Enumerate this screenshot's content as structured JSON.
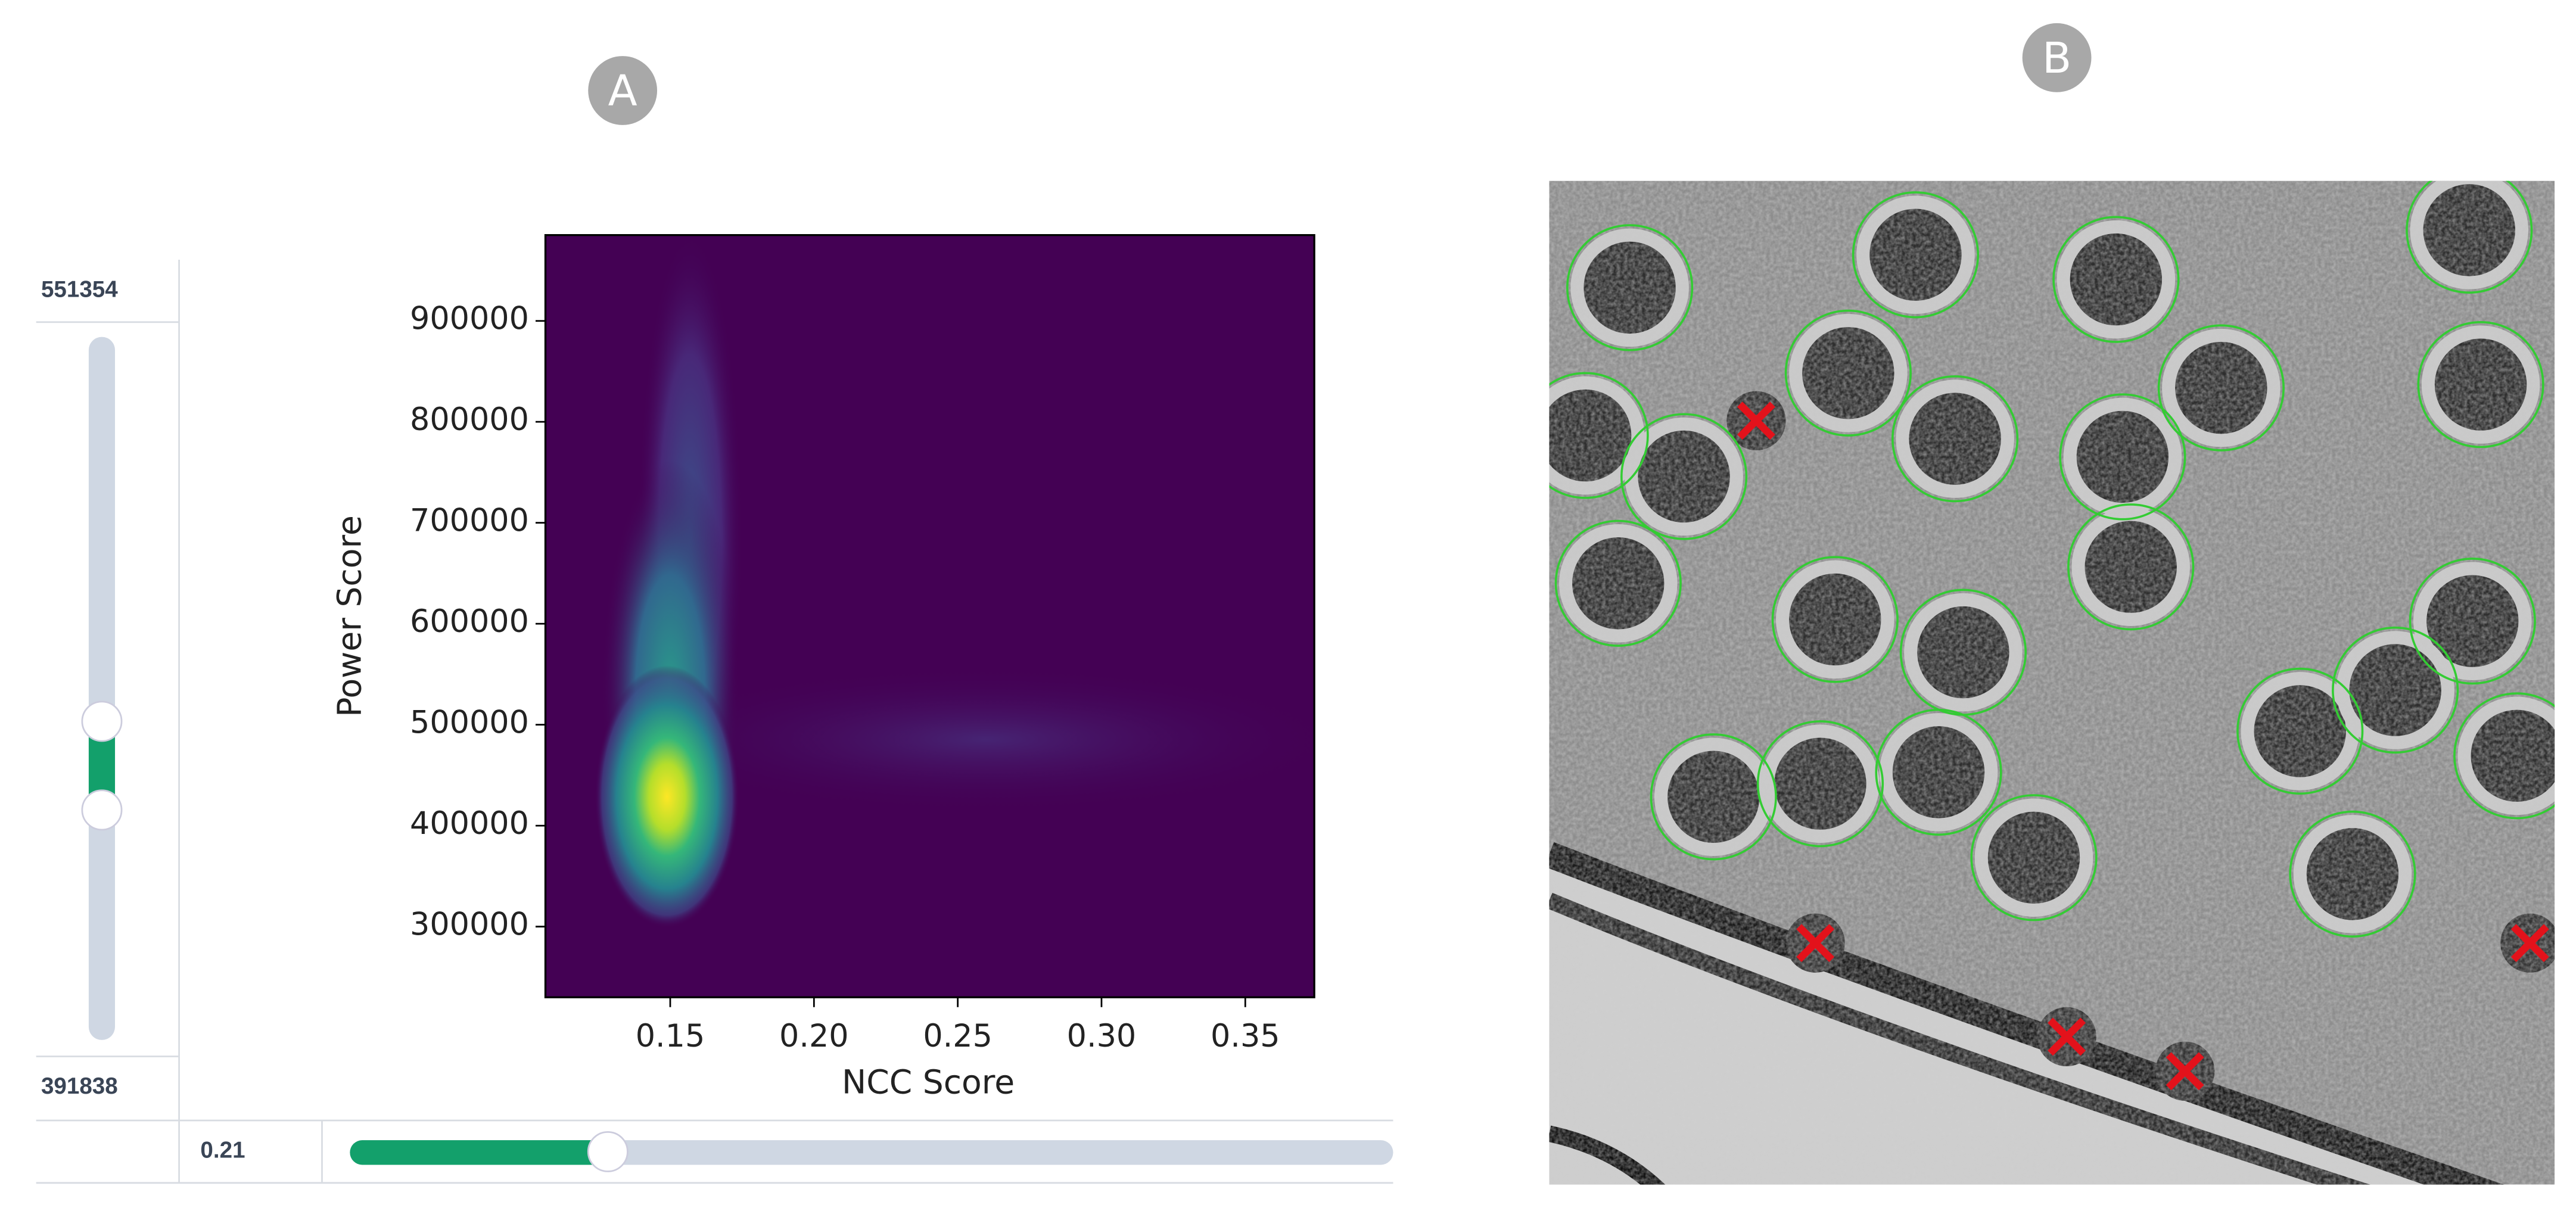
{
  "panels": {
    "a_label": "A",
    "b_label": "B"
  },
  "sliders": {
    "power_max": 551354,
    "power_min": 391838,
    "ncc_value": 0.21
  },
  "chart_data": {
    "type": "histogram2d",
    "xlabel": "NCC Score",
    "ylabel": "Power Score",
    "xlim": [
      0.1066,
      0.374
    ],
    "xticks": [
      0.15,
      {
        "value": 0.2,
        "label": "0.20"
      },
      0.25,
      {
        "value": 0.3,
        "label": "0.30"
      },
      0.35
    ],
    "ylim": [
      230000,
      985000
    ],
    "yticks": [
      300000,
      400000,
      500000,
      600000,
      700000,
      800000,
      900000
    ]
  }
}
